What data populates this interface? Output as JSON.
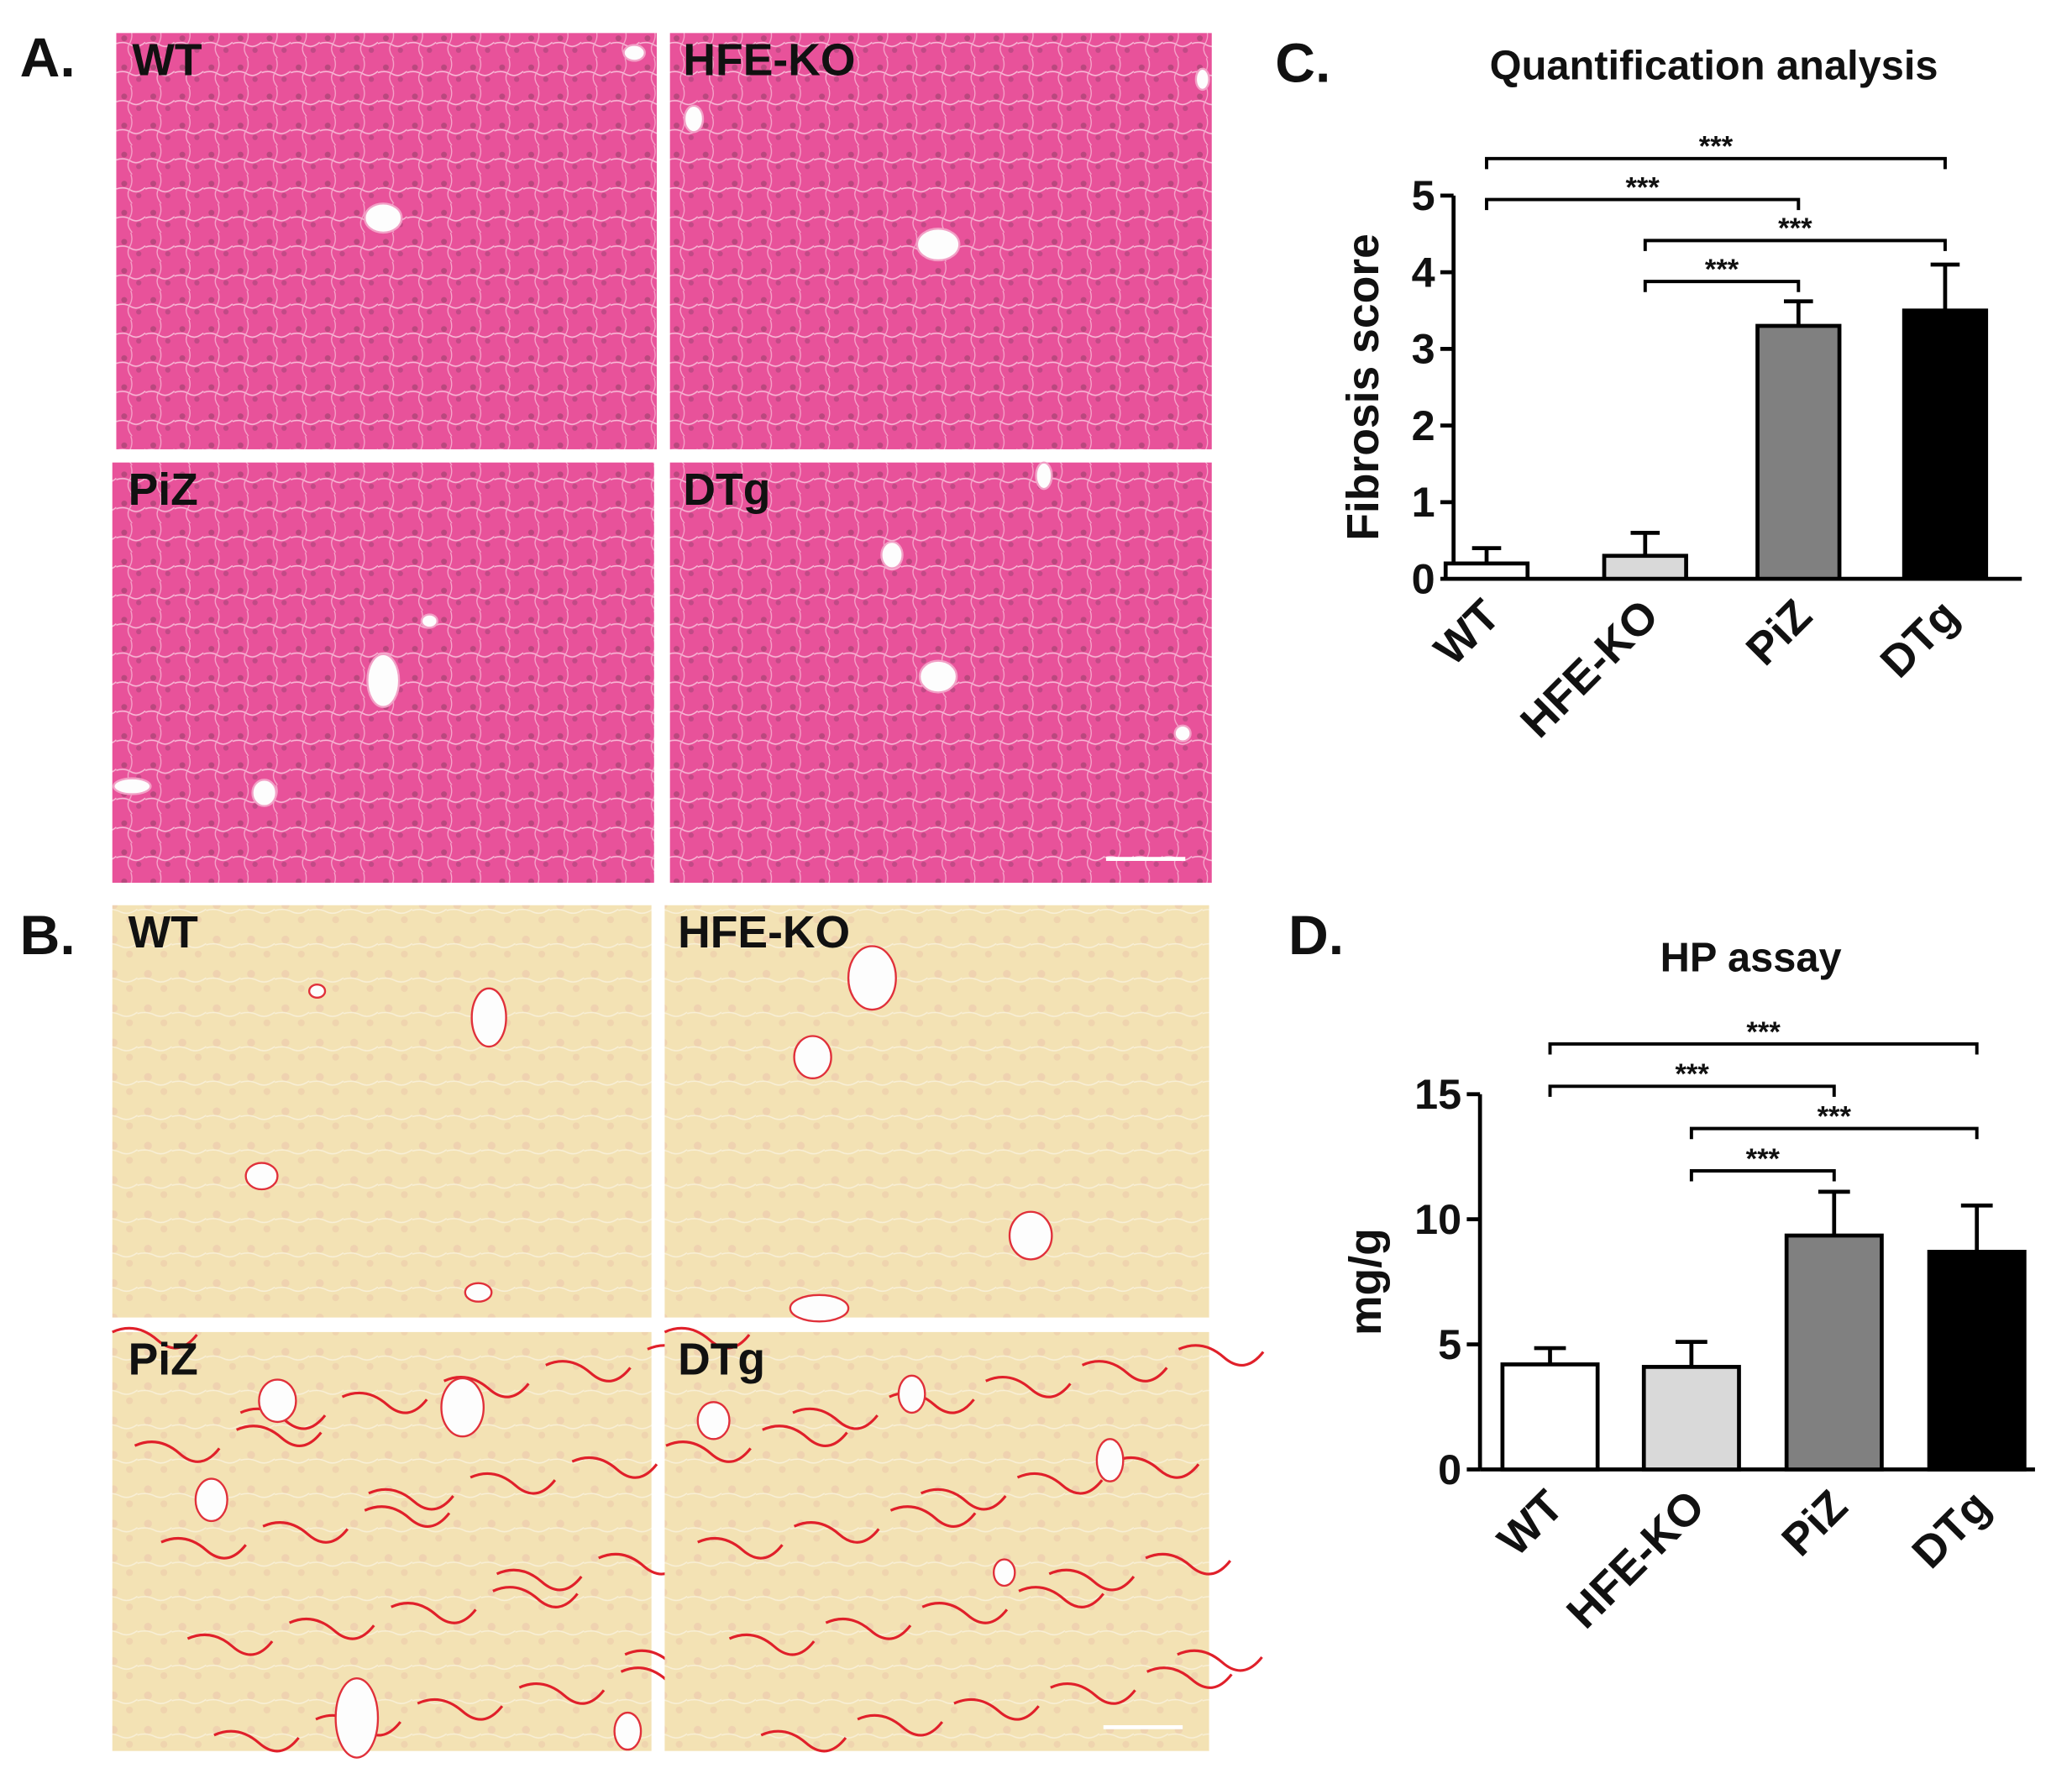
{
  "panels": [
    {
      "label": "A.",
      "stain": "he",
      "images": [
        "WT",
        "HFE-KO",
        "PiZ",
        "DTg"
      ]
    },
    {
      "label": "B.",
      "stain": "sirius",
      "images": [
        "WT",
        "HFE-KO",
        "PiZ",
        "DTg"
      ]
    }
  ],
  "chart_data": [
    {
      "type": "bar",
      "panel_label": "C.",
      "title": "Quantification analysis",
      "y_label": "Fibrosis score",
      "categories": [
        "WT",
        "HFE-KO",
        "PiZ",
        "DTg"
      ],
      "values": [
        0.2,
        0.3,
        3.3,
        3.5
      ],
      "errors": [
        0.2,
        0.3,
        0.32,
        0.6
      ],
      "colors": [
        "#ffffff",
        "#d9d9d9",
        "#808080",
        "#000000"
      ],
      "ylim": [
        0,
        5
      ],
      "yticks": [
        0,
        1,
        2,
        3,
        4,
        5
      ],
      "significance": [
        {
          "from": "WT",
          "to": "DTg",
          "label": "***"
        },
        {
          "from": "WT",
          "to": "PiZ",
          "label": "***"
        },
        {
          "from": "HFE-KO",
          "to": "DTg",
          "label": "***"
        },
        {
          "from": "HFE-KO",
          "to": "PiZ",
          "label": "***"
        }
      ]
    },
    {
      "type": "bar",
      "panel_label": "D.",
      "title": "HP assay",
      "y_label": "mg/g",
      "categories": [
        "WT",
        "HFE-KO",
        "PiZ",
        "DTg"
      ],
      "values": [
        4.2,
        4.1,
        9.35,
        8.7
      ],
      "errors": [
        0.65,
        1.0,
        1.75,
        1.85
      ],
      "colors": [
        "#ffffff",
        "#d9d9d9",
        "#808080",
        "#000000"
      ],
      "ylim": [
        0,
        15
      ],
      "yticks": [
        0,
        5,
        10,
        15
      ],
      "significance": [
        {
          "from": "WT",
          "to": "DTg",
          "label": "***"
        },
        {
          "from": "WT",
          "to": "PiZ",
          "label": "***"
        },
        {
          "from": "HFE-KO",
          "to": "DTg",
          "label": "***"
        },
        {
          "from": "HFE-KO",
          "to": "PiZ",
          "label": "***"
        }
      ]
    }
  ]
}
